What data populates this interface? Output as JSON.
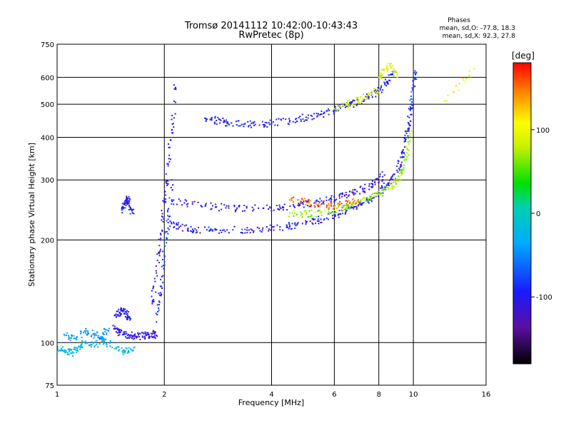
{
  "chart_data": {
    "type": "scatter",
    "title": "Tromsø 20141112 10:42:00-10:43:43",
    "subtitle": "RwPretec (8p)",
    "xlabel": "Frequency [MHz]",
    "ylabel": "Stationary phase Virtual Height [km]",
    "x_scale": "log",
    "y_scale": "log",
    "xlim": [
      1,
      16
    ],
    "ylim": [
      75,
      750
    ],
    "x_ticks": [
      1,
      2,
      4,
      6,
      8,
      10,
      16
    ],
    "y_ticks": [
      75,
      100,
      200,
      300,
      400,
      500,
      600,
      750
    ],
    "grid": true,
    "phases": {
      "heading": "Phases",
      "o_line": "mean, sd,O: -77.8, 18.3",
      "x_line": "mean, sd,X: 92.3, 27.8"
    },
    "colorbar": {
      "label": "[deg]",
      "range": [
        -180,
        180
      ],
      "ticks": [
        100,
        0,
        -100
      ],
      "colormap": "rainbow"
    },
    "traces": [
      {
        "x": [
          1.0,
          1.05,
          1.1,
          1.15,
          1.2,
          1.28,
          1.35,
          1.45,
          1.55,
          1.65
        ],
        "y": [
          97,
          95,
          93,
          97,
          100,
          98,
          102,
          96,
          94,
          97
        ],
        "phase": -20
      },
      {
        "x": [
          1.05,
          1.12,
          1.2,
          1.27,
          1.33,
          1.4
        ],
        "y": [
          105,
          103,
          108,
          106,
          104,
          110
        ],
        "phase": -40
      },
      {
        "x": [
          1.45,
          1.5,
          1.55,
          1.62,
          1.7,
          1.78,
          1.85,
          1.9
        ],
        "y": [
          110,
          107,
          106,
          105,
          104,
          105,
          106,
          105
        ],
        "phase": -110
      },
      {
        "x": [
          1.45,
          1.5,
          1.53,
          1.57,
          1.6
        ],
        "y": [
          120,
          122,
          124,
          121,
          118
        ],
        "phase": -100
      },
      {
        "x": [
          1.52,
          1.55,
          1.58,
          1.6,
          1.63
        ],
        "y": [
          245,
          255,
          265,
          250,
          240
        ],
        "phase": -100
      },
      {
        "x": [
          1.85,
          1.9,
          1.95,
          2.0,
          2.05,
          2.1,
          2.15
        ],
        "y": [
          130,
          160,
          200,
          260,
          330,
          420,
          560
        ],
        "phase": -110
      },
      {
        "x": [
          1.9,
          1.95,
          2.0,
          2.05,
          2.1
        ],
        "y": [
          115,
          140,
          180,
          230,
          300
        ],
        "phase": -90
      },
      {
        "x": [
          2.05,
          2.2,
          2.4,
          2.7,
          3.0,
          3.5,
          4.0,
          4.5,
          5.0,
          5.5,
          6.0,
          6.5,
          7.0,
          7.5,
          8.0,
          8.5,
          9.0,
          9.3,
          9.5,
          9.7,
          9.85
        ],
        "y": [
          225,
          218,
          215,
          214,
          214,
          215,
          217,
          220,
          225,
          230,
          237,
          244,
          252,
          262,
          275,
          292,
          320,
          350,
          390,
          440,
          500
        ],
        "phase": -100
      },
      {
        "x": [
          2.1,
          2.4,
          2.8,
          3.2,
          3.8,
          4.3,
          4.8,
          5.3,
          5.8,
          6.3,
          6.8,
          7.3,
          7.8,
          8.3
        ],
        "y": [
          260,
          255,
          250,
          248,
          248,
          250,
          253,
          257,
          262,
          268,
          275,
          283,
          295,
          310
        ],
        "phase": -110
      },
      {
        "x": [
          4.5,
          5.0,
          5.5,
          6.0,
          6.5,
          7.0,
          7.5,
          8.0,
          8.5,
          9.0,
          9.3,
          9.6,
          9.8
        ],
        "y": [
          240,
          238,
          240,
          244,
          250,
          258,
          265,
          272,
          282,
          298,
          320,
          360,
          410
        ],
        "phase": 70
      },
      {
        "x": [
          4.5,
          5.0,
          5.5,
          6.0,
          6.5,
          7.0
        ],
        "y": [
          262,
          258,
          254,
          252,
          255,
          262
        ],
        "phase": 150
      },
      {
        "x": [
          2.6,
          2.8,
          3.0,
          3.3,
          3.6,
          4.0,
          4.5,
          5.0,
          5.5,
          6.0,
          6.5,
          7.0,
          7.5,
          8.0,
          8.4,
          8.8
        ],
        "y": [
          455,
          448,
          440,
          436,
          436,
          440,
          448,
          458,
          468,
          480,
          493,
          508,
          525,
          548,
          580,
          620
        ],
        "phase": -100
      },
      {
        "x": [
          6.0,
          6.5,
          7.0,
          7.5,
          8.0
        ],
        "y": [
          485,
          498,
          512,
          530,
          552
        ],
        "phase": 90
      },
      {
        "x": [
          8.0,
          8.3,
          8.6,
          9.0
        ],
        "y": [
          600,
          630,
          650,
          610
        ],
        "phase": 90
      },
      {
        "x": [
          9.8,
          10.0,
          10.2
        ],
        "y": [
          480,
          560,
          620
        ],
        "phase": -80
      },
      {
        "x": [
          12.2,
          14.8
        ],
        "y": [
          510,
          635
        ],
        "phase": 100
      }
    ]
  }
}
